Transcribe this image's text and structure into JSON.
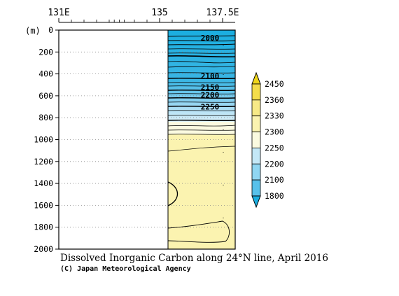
{
  "chart_data": {
    "type": "heatmap",
    "title": "Dissolved Inorganic Carbon along 24°N line, April 2016",
    "credit": "(C) Japan Meteorological Agency",
    "x_axis": {
      "ticks": [
        131,
        135,
        137.5
      ],
      "tick_labels": [
        "131E",
        "135",
        "137.5E"
      ],
      "minor_ticks": [
        131.5,
        132,
        132.5,
        133,
        133.2,
        133.4,
        133.6,
        134,
        134.5,
        135.5,
        136,
        136.5,
        137
      ]
    },
    "y_axis": {
      "unit_label": "(m)",
      "range": [
        0,
        2000
      ],
      "ticks": [
        0,
        200,
        400,
        600,
        800,
        1000,
        1200,
        1400,
        1600,
        1800,
        2000
      ]
    },
    "data_extent": {
      "x": [
        135,
        137.5
      ],
      "depth": [
        0,
        2000
      ]
    },
    "contour_labels": [
      {
        "text": "2000",
        "lon": 137.0,
        "depth": 70
      },
      {
        "text": "2100",
        "lon": 137.0,
        "depth": 420
      },
      {
        "text": "2150",
        "lon": 137.0,
        "depth": 520
      },
      {
        "text": "2200",
        "lon": 137.0,
        "depth": 590
      },
      {
        "text": "2250",
        "lon": 137.0,
        "depth": 700
      }
    ],
    "colorbar": {
      "levels": [
        1800,
        2100,
        2200,
        2250,
        2300,
        2330,
        2360,
        2450
      ],
      "labels": [
        "1800",
        "2100",
        "2200",
        "2250",
        "2300",
        "2330",
        "2360",
        "2450"
      ],
      "colors": [
        "#1aaee0",
        "#58c1ea",
        "#90d6f2",
        "#c4e8f7",
        "#fbfae0",
        "#fbf3b0",
        "#f7e987",
        "#f3dd4a",
        "#eed51a"
      ]
    },
    "fill_colors": {
      "surface": "#1aaee0",
      "deep": "#fbf3b0",
      "transition": "#fbfae0"
    }
  }
}
